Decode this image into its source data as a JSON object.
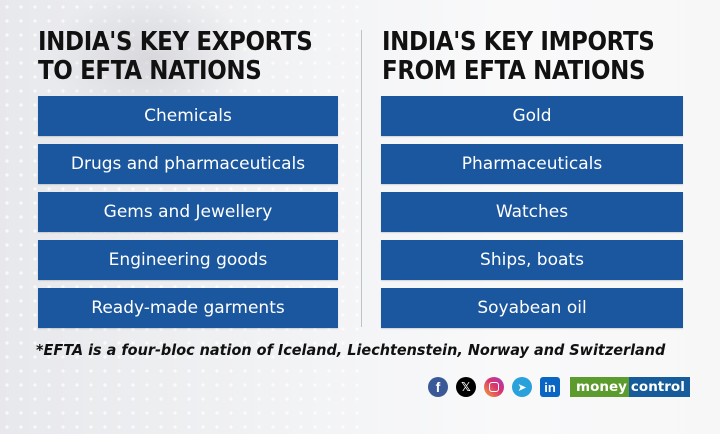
{
  "exports": {
    "title_line1": "INDIA'S KEY EXPORTS",
    "title_line2": "TO EFTA NATIONS",
    "items": [
      "Chemicals",
      "Drugs and pharmaceuticals",
      "Gems and Jewellery",
      "Engineering goods",
      "Ready-made garments"
    ]
  },
  "imports": {
    "title_line1": "INDIA'S KEY IMPORTS",
    "title_line2": "FROM EFTA NATIONS",
    "items": [
      "Gold",
      "Pharmaceuticals",
      "Watches",
      "Ships, boats",
      "Soyabean oil"
    ]
  },
  "footnote": "*EFTA is a four-bloc nation of Iceland, Liechtenstein, Norway and Switzerland",
  "footer": {
    "social_icons": {
      "facebook": "f",
      "x": "𝕏",
      "instagram": "",
      "telegram": "➤",
      "linkedin": "in"
    },
    "brand_part1": "money",
    "brand_part2": "control"
  },
  "colors": {
    "item_background": "#1b579e",
    "brand_green": "#5c9b2e",
    "brand_blue": "#165c9a"
  }
}
